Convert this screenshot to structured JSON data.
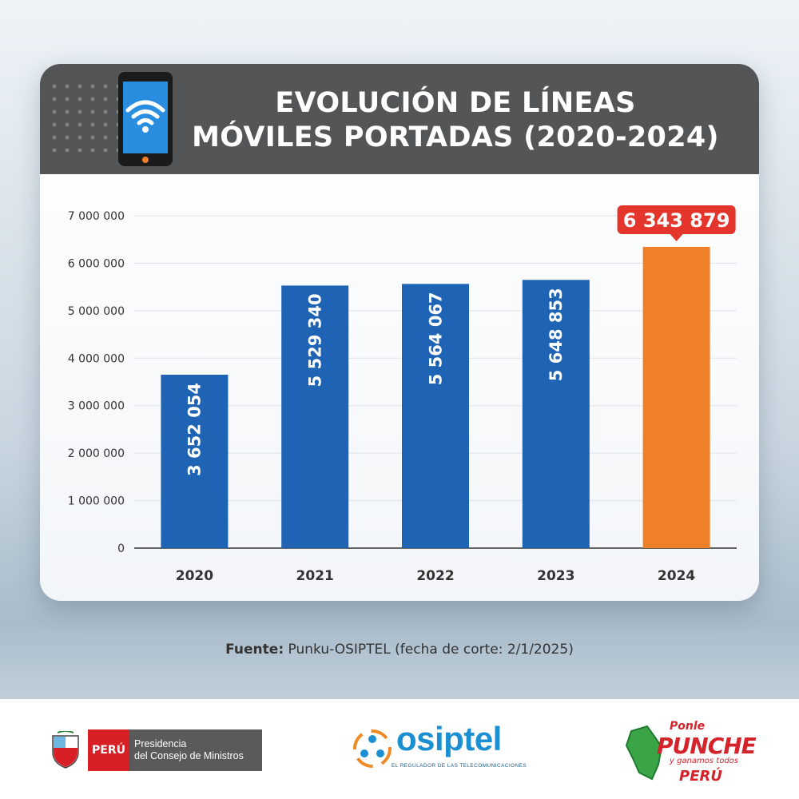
{
  "chart_data": {
    "type": "bar",
    "title": "EVOLUCIÓN DE LÍNEAS MÓVILES PORTADAS (2020-2024)",
    "title_lines": [
      "EVOLUCIÓN DE LÍNEAS",
      "MÓVILES PORTADAS (2020-2024)"
    ],
    "categories": [
      "2020",
      "2021",
      "2022",
      "2023",
      "2024"
    ],
    "values": [
      3652054,
      5529340,
      5564067,
      5648853,
      6343879
    ],
    "value_labels": [
      "3 652 054",
      "5 529 340",
      "5 564 067",
      "5 648 853",
      "6 343 879"
    ],
    "ylim": [
      0,
      7000000
    ],
    "yticks": [
      0,
      1000000,
      2000000,
      3000000,
      4000000,
      5000000,
      6000000,
      7000000
    ],
    "ytick_labels": [
      "0",
      "1 000 000",
      "2 000 000",
      "3 000 000",
      "4 000 000",
      "5 000 000",
      "6 000 000",
      "7 000 000"
    ],
    "grid": true,
    "xlabel": "",
    "ylabel": "",
    "highlight_index": 4,
    "colors": {
      "bar": "#1e63b4",
      "highlight": "#f07f2a",
      "callout": "#e3352b"
    }
  },
  "source": {
    "label": "Fuente:",
    "text": "Punku-OSIPTEL (fecha de corte: 2/1/2025)"
  },
  "footer": {
    "peru_label": "PERÚ",
    "pcm_line1": "Presidencia",
    "pcm_line2": "del Consejo de Ministros",
    "osiptel_name": "osiptel",
    "osiptel_tagline": "EL REGULADOR DE LAS TELECOMUNICACIONES",
    "punche_1": "Ponle",
    "punche_2": "PUNCHE",
    "punche_3": "y ganamos todos",
    "punche_4": "PERÚ"
  },
  "icons": {
    "phone": "smartphone-wifi-icon"
  }
}
